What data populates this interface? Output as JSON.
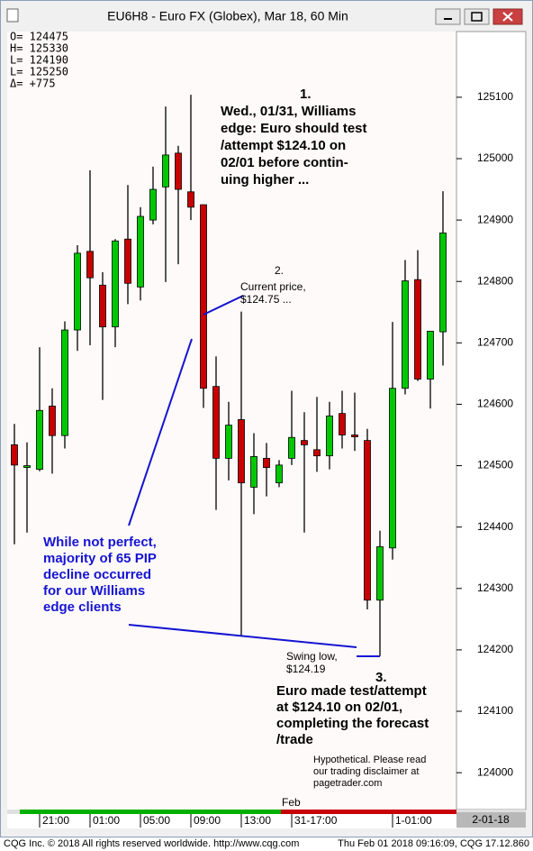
{
  "window_title": "EU6H8 - Euro FX (Globex), Mar 18, 60 Min",
  "chart_data": {
    "type": "candlestick",
    "info_lines": [
      "O= 124475",
      "H= 125330",
      "L= 124190",
      "L= 125250",
      "Δ=     +775"
    ],
    "categories": [
      null,
      null,
      "21:00",
      null,
      null,
      null,
      "01:00",
      null,
      null,
      null,
      "05:00",
      null,
      null,
      null,
      "09:00",
      null,
      null,
      null,
      "13:00",
      null,
      null,
      null,
      "31-17:00",
      null,
      null,
      null,
      null,
      null,
      null,
      null,
      "1-01:00",
      null,
      null,
      null,
      null
    ],
    "month_label": "Feb",
    "date_label": "2-01-18",
    "open": [
      124534,
      124500,
      124494,
      124597,
      124549,
      124721,
      124849,
      124794,
      124726,
      124869,
      124791,
      124900,
      124954,
      125009,
      124946,
      124925,
      124629,
      124512,
      124575,
      124465,
      124512,
      124472,
      124512,
      124541,
      124526,
      124516,
      124585,
      124550,
      124541,
      124281,
      124366,
      124626,
      124803,
      124641,
      124718
    ],
    "high": [
      124568,
      124538,
      124693,
      124626,
      124735,
      124859,
      124981,
      124815,
      124869,
      124957,
      124921,
      124987,
      125085,
      125021,
      125104,
      124925,
      124678,
      124604,
      124751,
      124553,
      124537,
      124509,
      124622,
      124587,
      124612,
      124604,
      124622,
      124619,
      124560,
      124394,
      124734,
      124835,
      124851,
      124719,
      124947
    ],
    "low": [
      124372,
      124391,
      124491,
      124487,
      124528,
      124687,
      124696,
      124607,
      124693,
      124763,
      124769,
      124893,
      124799,
      124828,
      124900,
      124594,
      124428,
      124476,
      124222,
      124421,
      124450,
      124465,
      124501,
      124391,
      124490,
      124494,
      124528,
      124524,
      124266,
      124190,
      124347,
      124616,
      124638,
      124593,
      124663
    ],
    "close": [
      124501,
      124500,
      124590,
      124549,
      124721,
      124846,
      124806,
      124726,
      124866,
      124797,
      124906,
      124950,
      125006,
      124950,
      124921,
      124626,
      124512,
      124566,
      124472,
      124515,
      124497,
      124501,
      124546,
      124534,
      124516,
      124581,
      124550,
      124547,
      124281,
      124368,
      124626,
      124801,
      124641,
      124719,
      124879
    ],
    "up_color": "#00c800",
    "down_color": "#c80000",
    "ylim": [
      123940,
      125207
    ],
    "yticks": [
      124000,
      124100,
      124200,
      124300,
      124400,
      124500,
      124600,
      124700,
      124800,
      124900,
      125000,
      125100
    ],
    "annotations": {
      "note1": {
        "number": "1.",
        "lines": [
          "Wed., 01/31, Williams",
          "edge: Euro should test",
          "/attempt $124.10 on",
          "02/01 before contin-",
          "uing higher ..."
        ]
      },
      "note2": {
        "number": "2.",
        "lines": [
          "Current price,",
          "$124.75 ..."
        ]
      },
      "note_blue": {
        "lines": [
          "While not perfect,",
          "majority of 65 PIP",
          "decline occurred",
          "for our Williams",
          "edge clients"
        ]
      },
      "swing": {
        "lines": [
          "Swing low,",
          "$124.19"
        ]
      },
      "note3": {
        "number": "3.",
        "lines": [
          "Euro made test/attempt",
          "at $124.10 on 02/01,",
          "completing the forecast",
          "/trade"
        ]
      },
      "disclaimer": {
        "lines": [
          "Hypothetical.  Please read",
          "our trading disclaimer at",
          "pagetrader.com"
        ]
      }
    }
  },
  "footer": {
    "left": "CQG Inc. © 2018 All rights reserved worldwide. http://www.cqg.com",
    "right": "Thu Feb 01 2018 09:16:09, CQG 17.12.860"
  }
}
